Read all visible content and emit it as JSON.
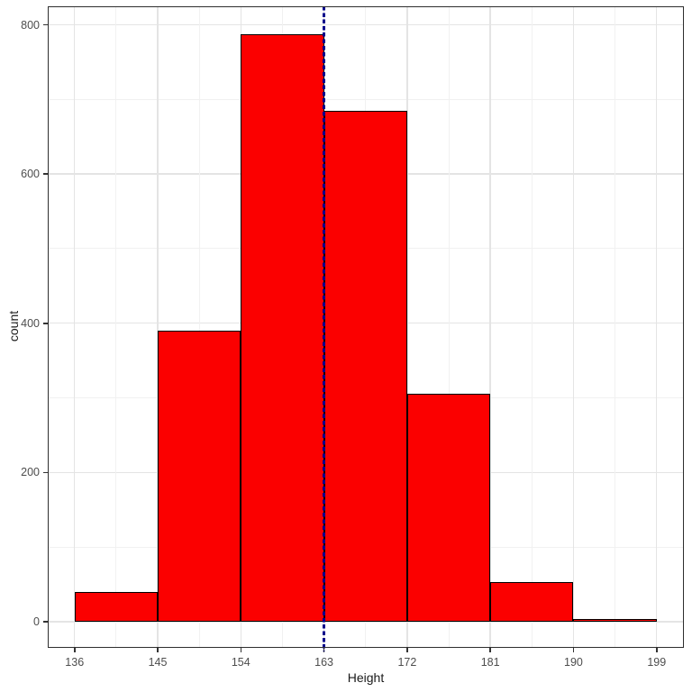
{
  "chart_data": {
    "type": "bar",
    "subtype": "histogram",
    "title": "",
    "xlabel": "Height",
    "ylabel": "count",
    "bins": [
      {
        "start": 136,
        "end": 145,
        "count": 40
      },
      {
        "start": 145,
        "end": 154,
        "count": 390
      },
      {
        "start": 154,
        "end": 163,
        "count": 787
      },
      {
        "start": 163,
        "end": 172,
        "count": 685
      },
      {
        "start": 172,
        "end": 181,
        "count": 306
      },
      {
        "start": 181,
        "end": 190,
        "count": 53
      },
      {
        "start": 190,
        "end": 199,
        "count": 2
      }
    ],
    "x_ticks": [
      136,
      145,
      154,
      163,
      172,
      181,
      190,
      199
    ],
    "y_ticks": [
      0,
      200,
      400,
      600,
      800
    ],
    "xlim": [
      133.1,
      201.95
    ],
    "ylim": [
      -35,
      824.8
    ],
    "vline": {
      "x": 163,
      "style": "dashed",
      "color": "#00008B"
    },
    "grid": "major+minor",
    "legend_position": "none",
    "colors": {
      "bar_fill": "#FB0000",
      "bar_stroke": "#000000",
      "vline": "#00008B",
      "grid_major": "#e4e4e4",
      "grid_minor": "#f1f1f1",
      "panel_border": "#2e2e2e",
      "panel_bg": "#ffffff",
      "page_bg": "#ffffff",
      "tick_label": "#4d4d4d",
      "axis_title": "#1a1a1a",
      "tick_mark": "#333333"
    }
  }
}
